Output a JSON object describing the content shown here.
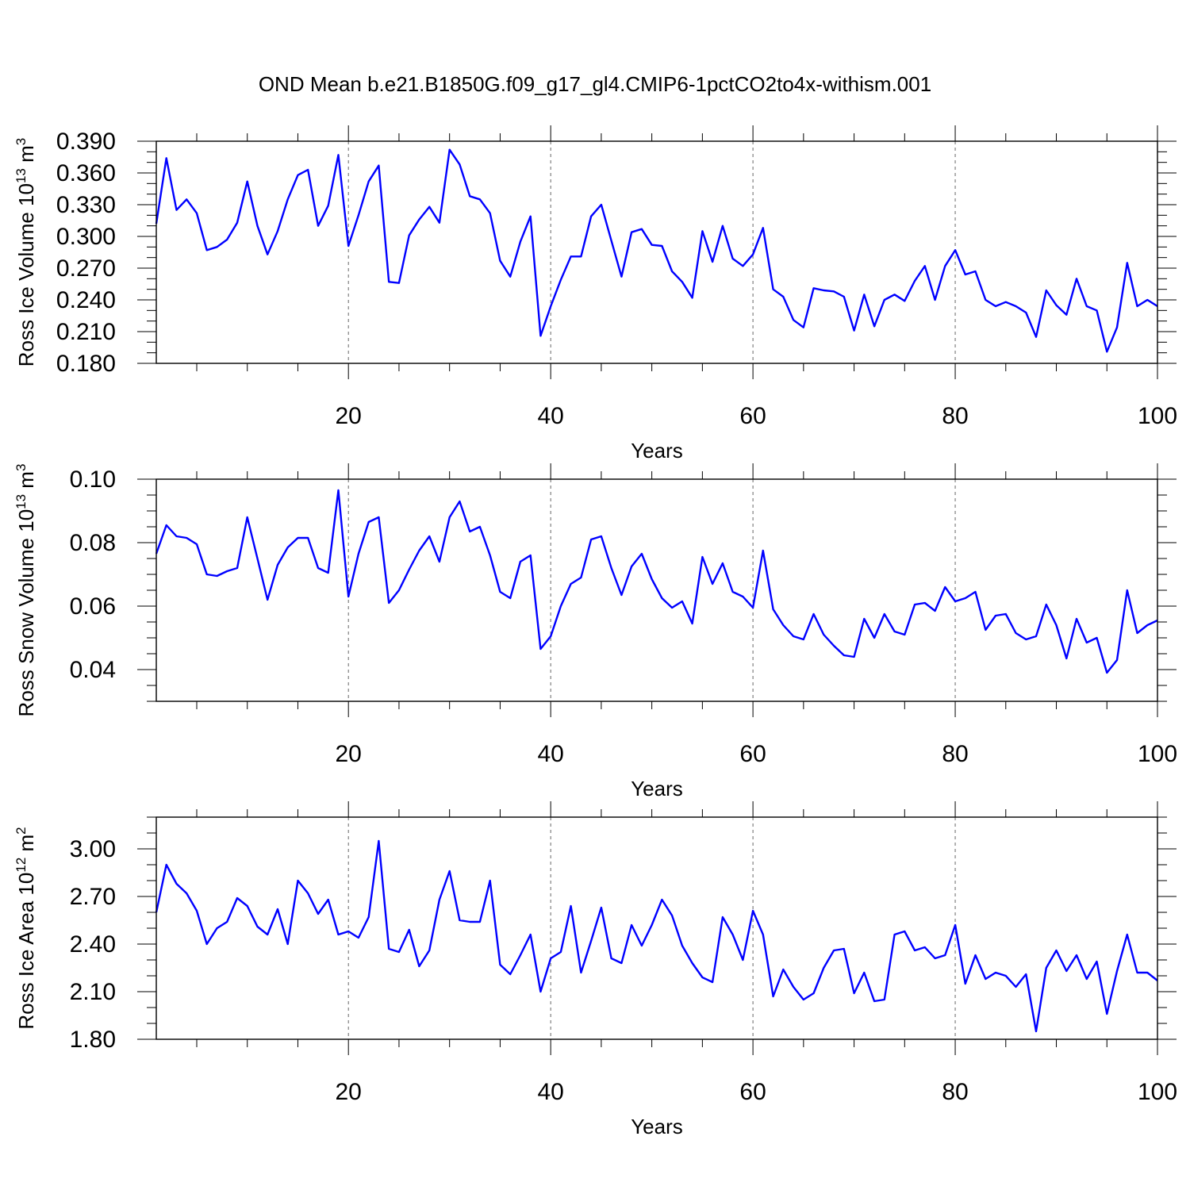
{
  "title": "OND Mean b.e21.B1850G.f09_g17_gl4.CMIP6-1pctCO2to4x-withism.001",
  "line_color": "#0000ff",
  "chart_data": [
    {
      "id": "ice-volume",
      "type": "line",
      "ylabel": "Ross Ice Volume 10",
      "ylabel_sup": "13",
      "ylabel_unit": " m",
      "ylabel_unit_sup": "3",
      "xlabel": "Years",
      "xlim": [
        1,
        100
      ],
      "ylim": [
        0.18,
        0.39
      ],
      "xticks": [
        20,
        40,
        60,
        80,
        100
      ],
      "xtick_labels": [
        "20",
        "40",
        "60",
        "80",
        "100"
      ],
      "yticks": [
        0.18,
        0.21,
        0.24,
        0.27,
        0.3,
        0.33,
        0.36,
        0.39
      ],
      "ytick_labels": [
        "0.180",
        "0.210",
        "0.240",
        "0.270",
        "0.300",
        "0.330",
        "0.360",
        "0.390"
      ],
      "yminor_step": 0.01,
      "grid_x": [
        20,
        40,
        60,
        80
      ],
      "x": [
        1,
        2,
        3,
        4,
        5,
        6,
        7,
        8,
        9,
        10,
        11,
        12,
        13,
        14,
        15,
        16,
        17,
        18,
        19,
        20,
        21,
        22,
        23,
        24,
        25,
        26,
        27,
        28,
        29,
        30,
        31,
        32,
        33,
        34,
        35,
        36,
        37,
        38,
        39,
        40,
        41,
        42,
        43,
        44,
        45,
        46,
        47,
        48,
        49,
        50,
        51,
        52,
        53,
        54,
        55,
        56,
        57,
        58,
        59,
        60,
        61,
        62,
        63,
        64,
        65,
        66,
        67,
        68,
        69,
        70,
        71,
        72,
        73,
        74,
        75,
        76,
        77,
        78,
        79,
        80,
        81,
        82,
        83,
        84,
        85,
        86,
        87,
        88,
        89,
        90,
        91,
        92,
        93,
        94,
        95,
        96,
        97,
        98,
        99,
        100
      ],
      "values": [
        0.312,
        0.374,
        0.325,
        0.335,
        0.322,
        0.287,
        0.29,
        0.297,
        0.313,
        0.352,
        0.31,
        0.283,
        0.305,
        0.335,
        0.358,
        0.363,
        0.31,
        0.329,
        0.377,
        0.291,
        0.32,
        0.352,
        0.367,
        0.257,
        0.256,
        0.301,
        0.316,
        0.328,
        0.313,
        0.382,
        0.368,
        0.338,
        0.335,
        0.322,
        0.277,
        0.262,
        0.295,
        0.319,
        0.206,
        0.234,
        0.259,
        0.281,
        0.281,
        0.319,
        0.33,
        0.296,
        0.262,
        0.304,
        0.307,
        0.292,
        0.291,
        0.267,
        0.257,
        0.242,
        0.305,
        0.276,
        0.31,
        0.279,
        0.272,
        0.283,
        0.308,
        0.25,
        0.243,
        0.221,
        0.214,
        0.251,
        0.249,
        0.248,
        0.243,
        0.211,
        0.245,
        0.215,
        0.24,
        0.245,
        0.239,
        0.258,
        0.272,
        0.24,
        0.272,
        0.287,
        0.264,
        0.267,
        0.24,
        0.234,
        0.238,
        0.234,
        0.228,
        0.205,
        0.249,
        0.235,
        0.226,
        0.26,
        0.234,
        0.23,
        0.191,
        0.214,
        0.275,
        0.234,
        0.24,
        0.234
      ]
    },
    {
      "id": "snow-volume",
      "type": "line",
      "ylabel": "Ross Snow Volume 10",
      "ylabel_sup": "13",
      "ylabel_unit": " m",
      "ylabel_unit_sup": "3",
      "xlabel": "Years",
      "xlim": [
        1,
        100
      ],
      "ylim": [
        0.03,
        0.1
      ],
      "xticks": [
        20,
        40,
        60,
        80,
        100
      ],
      "xtick_labels": [
        "20",
        "40",
        "60",
        "80",
        "100"
      ],
      "yticks": [
        0.04,
        0.06,
        0.08,
        0.1
      ],
      "ytick_labels": [
        "0.04",
        "0.06",
        "0.08",
        "0.10"
      ],
      "yminor_step": 0.005,
      "grid_x": [
        20,
        40,
        60,
        80
      ],
      "x": [
        1,
        2,
        3,
        4,
        5,
        6,
        7,
        8,
        9,
        10,
        11,
        12,
        13,
        14,
        15,
        16,
        17,
        18,
        19,
        20,
        21,
        22,
        23,
        24,
        25,
        26,
        27,
        28,
        29,
        30,
        31,
        32,
        33,
        34,
        35,
        36,
        37,
        38,
        39,
        40,
        41,
        42,
        43,
        44,
        45,
        46,
        47,
        48,
        49,
        50,
        51,
        52,
        53,
        54,
        55,
        56,
        57,
        58,
        59,
        60,
        61,
        62,
        63,
        64,
        65,
        66,
        67,
        68,
        69,
        70,
        71,
        72,
        73,
        74,
        75,
        76,
        77,
        78,
        79,
        80,
        81,
        82,
        83,
        84,
        85,
        86,
        87,
        88,
        89,
        90,
        91,
        92,
        93,
        94,
        95,
        96,
        97,
        98,
        99,
        100
      ],
      "values": [
        0.0765,
        0.0855,
        0.082,
        0.0815,
        0.0795,
        0.07,
        0.0695,
        0.071,
        0.072,
        0.088,
        0.075,
        0.062,
        0.073,
        0.0785,
        0.0815,
        0.0815,
        0.072,
        0.0705,
        0.0965,
        0.063,
        0.0765,
        0.0865,
        0.088,
        0.061,
        0.065,
        0.0715,
        0.0775,
        0.082,
        0.074,
        0.088,
        0.093,
        0.0835,
        0.085,
        0.076,
        0.0645,
        0.0625,
        0.074,
        0.076,
        0.0465,
        0.0505,
        0.06,
        0.067,
        0.069,
        0.081,
        0.082,
        0.072,
        0.0635,
        0.0725,
        0.0765,
        0.0685,
        0.0625,
        0.0595,
        0.0615,
        0.0545,
        0.0755,
        0.067,
        0.0735,
        0.0645,
        0.063,
        0.0595,
        0.0775,
        0.059,
        0.054,
        0.0505,
        0.0495,
        0.0575,
        0.051,
        0.0475,
        0.0445,
        0.044,
        0.056,
        0.05,
        0.0575,
        0.052,
        0.051,
        0.0605,
        0.061,
        0.0585,
        0.066,
        0.0615,
        0.0625,
        0.0645,
        0.0525,
        0.057,
        0.0575,
        0.0515,
        0.0495,
        0.0505,
        0.0605,
        0.054,
        0.0435,
        0.056,
        0.0485,
        0.05,
        0.039,
        0.043,
        0.065,
        0.0515,
        0.054,
        0.0555
      ]
    },
    {
      "id": "ice-area",
      "type": "line",
      "ylabel": "Ross Ice Area 10",
      "ylabel_sup": "12",
      "ylabel_unit": " m",
      "ylabel_unit_sup": "2",
      "xlabel": "Years",
      "xlim": [
        1,
        100
      ],
      "ylim": [
        1.8,
        3.2
      ],
      "xticks": [
        20,
        40,
        60,
        80,
        100
      ],
      "xtick_labels": [
        "20",
        "40",
        "60",
        "80",
        "100"
      ],
      "yticks": [
        1.8,
        2.1,
        2.4,
        2.7,
        3.0
      ],
      "ytick_labels": [
        "1.80",
        "2.10",
        "2.40",
        "2.70",
        "3.00"
      ],
      "yminor_step": 0.1,
      "grid_x": [
        20,
        40,
        60,
        80
      ],
      "x": [
        1,
        2,
        3,
        4,
        5,
        6,
        7,
        8,
        9,
        10,
        11,
        12,
        13,
        14,
        15,
        16,
        17,
        18,
        19,
        20,
        21,
        22,
        23,
        24,
        25,
        26,
        27,
        28,
        29,
        30,
        31,
        32,
        33,
        34,
        35,
        36,
        37,
        38,
        39,
        40,
        41,
        42,
        43,
        44,
        45,
        46,
        47,
        48,
        49,
        50,
        51,
        52,
        53,
        54,
        55,
        56,
        57,
        58,
        59,
        60,
        61,
        62,
        63,
        64,
        65,
        66,
        67,
        68,
        69,
        70,
        71,
        72,
        73,
        74,
        75,
        76,
        77,
        78,
        79,
        80,
        81,
        82,
        83,
        84,
        85,
        86,
        87,
        88,
        89,
        90,
        91,
        92,
        93,
        94,
        95,
        96,
        97,
        98,
        99,
        100
      ],
      "values": [
        2.6,
        2.9,
        2.78,
        2.72,
        2.61,
        2.4,
        2.5,
        2.54,
        2.69,
        2.64,
        2.51,
        2.46,
        2.62,
        2.4,
        2.8,
        2.72,
        2.59,
        2.68,
        2.46,
        2.48,
        2.44,
        2.57,
        3.05,
        2.37,
        2.35,
        2.49,
        2.26,
        2.36,
        2.68,
        2.86,
        2.55,
        2.54,
        2.54,
        2.8,
        2.27,
        2.21,
        2.33,
        2.46,
        2.1,
        2.31,
        2.35,
        2.64,
        2.22,
        2.42,
        2.63,
        2.31,
        2.28,
        2.52,
        2.39,
        2.52,
        2.68,
        2.58,
        2.39,
        2.28,
        2.19,
        2.16,
        2.57,
        2.46,
        2.3,
        2.61,
        2.46,
        2.07,
        2.24,
        2.13,
        2.05,
        2.09,
        2.25,
        2.36,
        2.37,
        2.09,
        2.22,
        2.04,
        2.05,
        2.46,
        2.48,
        2.36,
        2.38,
        2.31,
        2.33,
        2.52,
        2.15,
        2.33,
        2.18,
        2.22,
        2.2,
        2.13,
        2.21,
        1.85,
        2.25,
        2.36,
        2.23,
        2.33,
        2.18,
        2.29,
        1.96,
        2.23,
        2.46,
        2.22,
        2.22,
        2.17
      ]
    }
  ]
}
